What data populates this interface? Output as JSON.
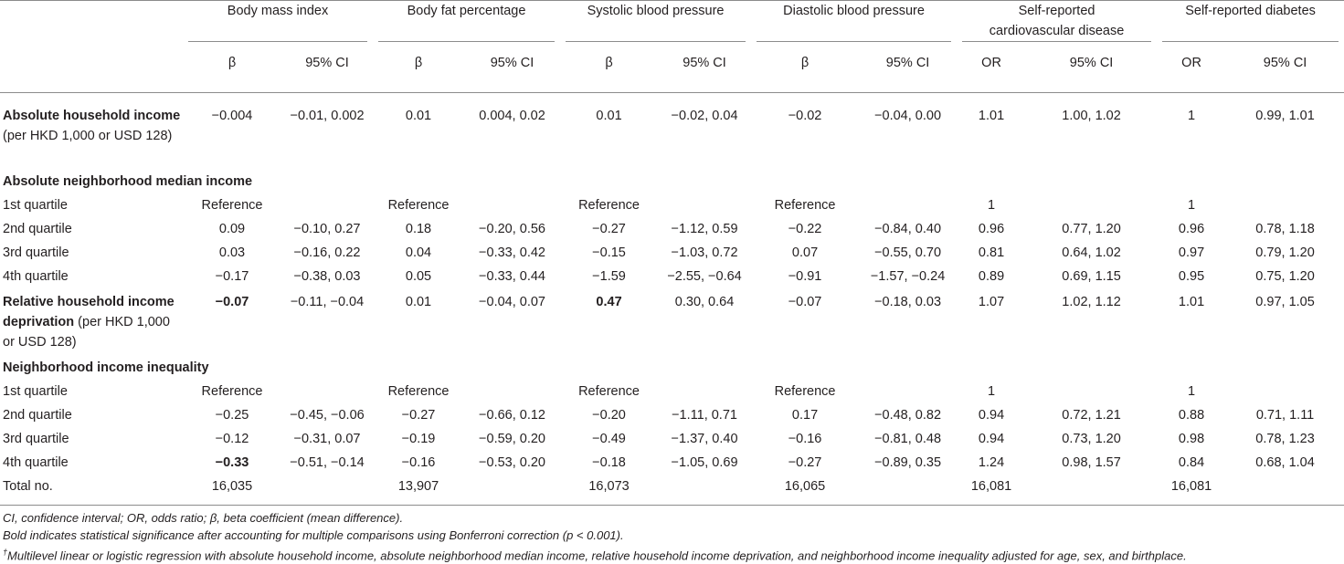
{
  "groups": [
    {
      "title": "Body mass index",
      "c1": "β",
      "c2": "95% CI"
    },
    {
      "title": "Body fat percentage",
      "c1": "β",
      "c2": "95% CI"
    },
    {
      "title": "Systolic blood pressure",
      "c1": "β",
      "c2": "95% CI"
    },
    {
      "title": "Diastolic blood pressure",
      "c1": "β",
      "c2": "95% CI"
    },
    {
      "title": "Self-reported cardiovascular disease",
      "c1": "OR",
      "c2": "95% CI"
    },
    {
      "title": "Self-reported diabetes",
      "c1": "OR",
      "c2": "95% CI"
    }
  ],
  "rows": {
    "abs_hh": {
      "label_bold": "Absolute household income",
      "label_rest": " (per HKD 1,000 or USD 128)",
      "cells": [
        "−0.004",
        "−0.01, 0.002",
        "0.01",
        "0.004, 0.02",
        "0.01",
        "−0.02, 0.04",
        "−0.02",
        "−0.04, 0.00",
        "1.01",
        "1.00, 1.02",
        "1",
        "0.99, 1.01"
      ]
    },
    "abs_nb_head": "Absolute neighborhood median income",
    "abs_nb": [
      {
        "label": "1st quartile",
        "cells": [
          "Reference",
          "",
          "Reference",
          "",
          "Reference",
          "",
          "Reference",
          "",
          "1",
          "",
          "1",
          ""
        ]
      },
      {
        "label": "2nd quartile",
        "cells": [
          "0.09",
          "−0.10, 0.27",
          "0.18",
          "−0.20, 0.56",
          "−0.27",
          "−1.12, 0.59",
          "−0.22",
          "−0.84, 0.40",
          "0.96",
          "0.77, 1.20",
          "0.96",
          "0.78, 1.18"
        ]
      },
      {
        "label": "3rd quartile",
        "cells": [
          "0.03",
          "−0.16, 0.22",
          "0.04",
          "−0.33, 0.42",
          "−0.15",
          "−1.03, 0.72",
          "0.07",
          "−0.55, 0.70",
          "0.81",
          "0.64, 1.02",
          "0.97",
          "0.79, 1.20"
        ]
      },
      {
        "label": "4th quartile",
        "cells": [
          "−0.17",
          "−0.38, 0.03",
          "0.05",
          "−0.33, 0.44",
          "−1.59",
          "−2.55, −0.64",
          "−0.91",
          "−1.57, −0.24",
          "0.89",
          "0.69, 1.15",
          "0.95",
          "0.75, 1.20"
        ]
      }
    ],
    "rel_dep": {
      "label_bold": "Relative household income deprivation",
      "label_rest": " (per HKD 1,000 or USD 128)",
      "cells": [
        "−0.07",
        "−0.11, −0.04",
        "0.01",
        "−0.04, 0.07",
        "0.47",
        "0.30, 0.64",
        "−0.07",
        "−0.18, 0.03",
        "1.07",
        "1.02, 1.12",
        "1.01",
        "0.97, 1.05"
      ]
    },
    "ineq_head": "Neighborhood income inequality",
    "ineq": [
      {
        "label": "1st quartile",
        "cells": [
          "Reference",
          "",
          "Reference",
          "",
          "Reference",
          "",
          "Reference",
          "",
          "1",
          "",
          "1",
          ""
        ]
      },
      {
        "label": "2nd quartile",
        "cells": [
          "−0.25",
          "−0.45, −0.06",
          "−0.27",
          "−0.66, 0.12",
          "−0.20",
          "−1.11, 0.71",
          "0.17",
          "−0.48, 0.82",
          "0.94",
          "0.72, 1.21",
          "0.88",
          "0.71, 1.11"
        ]
      },
      {
        "label": "3rd quartile",
        "cells": [
          "−0.12",
          "−0.31, 0.07",
          "−0.19",
          "−0.59, 0.20",
          "−0.49",
          "−1.37, 0.40",
          "−0.16",
          "−0.81, 0.48",
          "0.94",
          "0.73, 1.20",
          "0.98",
          "0.78, 1.23"
        ]
      },
      {
        "label": "4th quartile",
        "cells": [
          "−0.33",
          "−0.51, −0.14",
          "−0.16",
          "−0.53, 0.20",
          "−0.18",
          "−1.05, 0.69",
          "−0.27",
          "−0.89, 0.35",
          "1.24",
          "0.98, 1.57",
          "0.84",
          "0.68, 1.04"
        ]
      }
    ],
    "total": {
      "label": "Total no.",
      "cells": [
        "16,035",
        "",
        "13,907",
        "",
        "16,073",
        "",
        "16,065",
        "",
        "16,081",
        "",
        "16,081",
        ""
      ]
    }
  },
  "footnotes": {
    "abbrev": "CI, confidence interval; OR, odds ratio; β, beta coefficient (mean difference).",
    "bold_note": "Bold indicates statistical significance after accounting for multiple comparisons using Bonferroni correction (p < 0.001).",
    "dagger": "†",
    "model_note": "Multilevel linear or logistic regression with absolute household income, absolute neighborhood median income, relative household income deprivation, and neighborhood income inequality adjusted for age, sex, and birthplace."
  }
}
